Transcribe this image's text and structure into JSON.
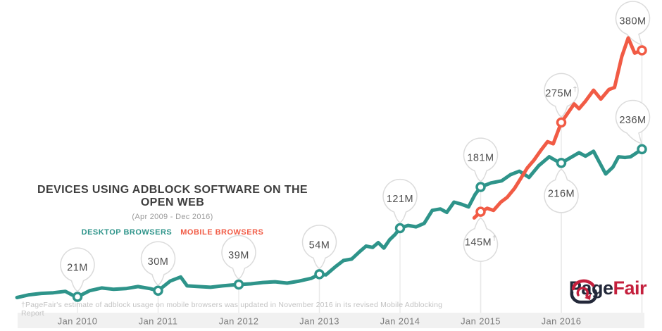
{
  "chart_data": {
    "type": "line",
    "title": "DEVICES USING ADBLOCK SOFTWARE ON THE OPEN WEB",
    "subtitle": "(Apr 2009 - Dec 2016)",
    "legend": [
      {
        "name": "DESKTOP BROWSERS",
        "color": "#2E948A"
      },
      {
        "name": "MOBILE BROWSERS",
        "color": "#F15B45"
      }
    ],
    "x_ticks": [
      {
        "label": "Jan 2010",
        "year": 2010
      },
      {
        "label": "Jan 2011",
        "year": 2011
      },
      {
        "label": "Jan 2012",
        "year": 2012
      },
      {
        "label": "Jan 2013",
        "year": 2013
      },
      {
        "label": "Jan 2014",
        "year": 2014
      },
      {
        "label": "Jan 2015",
        "year": 2015
      },
      {
        "label": "Jan 2016",
        "year": 2016
      }
    ],
    "x_range": [
      2009.25,
      2017.0
    ],
    "value_unit": "M",
    "series": [
      {
        "name": "Desktop Browsers",
        "color": "#2E948A",
        "points": [
          [
            2009.25,
            20
          ],
          [
            2009.4,
            24
          ],
          [
            2009.55,
            26
          ],
          [
            2009.7,
            27
          ],
          [
            2009.85,
            29
          ],
          [
            2009.93,
            24
          ],
          [
            2010,
            21
          ],
          [
            2010.15,
            30
          ],
          [
            2010.3,
            34
          ],
          [
            2010.45,
            32
          ],
          [
            2010.6,
            33
          ],
          [
            2010.75,
            36
          ],
          [
            2010.9,
            33
          ],
          [
            2011,
            30
          ],
          [
            2011.15,
            44
          ],
          [
            2011.28,
            50
          ],
          [
            2011.36,
            37
          ],
          [
            2011.5,
            36
          ],
          [
            2011.65,
            35
          ],
          [
            2011.8,
            37
          ],
          [
            2011.9,
            38
          ],
          [
            2012,
            39
          ],
          [
            2012.15,
            40
          ],
          [
            2012.3,
            42
          ],
          [
            2012.45,
            43
          ],
          [
            2012.6,
            41
          ],
          [
            2012.75,
            44
          ],
          [
            2012.9,
            48
          ],
          [
            2013,
            54
          ],
          [
            2013.08,
            53
          ],
          [
            2013.2,
            65
          ],
          [
            2013.3,
            74
          ],
          [
            2013.4,
            76
          ],
          [
            2013.5,
            87
          ],
          [
            2013.58,
            95
          ],
          [
            2013.66,
            93
          ],
          [
            2013.73,
            100
          ],
          [
            2013.8,
            92
          ],
          [
            2013.87,
            104
          ],
          [
            2013.94,
            112
          ],
          [
            2014,
            121
          ],
          [
            2014.1,
            125
          ],
          [
            2014.2,
            123
          ],
          [
            2014.3,
            128
          ],
          [
            2014.4,
            147
          ],
          [
            2014.5,
            149
          ],
          [
            2014.58,
            144
          ],
          [
            2014.67,
            159
          ],
          [
            2014.76,
            156
          ],
          [
            2014.85,
            152
          ],
          [
            2014.93,
            170
          ],
          [
            2015,
            181
          ],
          [
            2015.13,
            187
          ],
          [
            2015.26,
            190
          ],
          [
            2015.37,
            199
          ],
          [
            2015.48,
            204
          ],
          [
            2015.6,
            195
          ],
          [
            2015.72,
            212
          ],
          [
            2015.85,
            225
          ],
          [
            2015.94,
            219
          ],
          [
            2016,
            216
          ],
          [
            2016.22,
            231
          ],
          [
            2016.3,
            226
          ],
          [
            2016.4,
            233
          ],
          [
            2016.55,
            200
          ],
          [
            2016.64,
            210
          ],
          [
            2016.71,
            225
          ],
          [
            2016.79,
            224
          ],
          [
            2016.86,
            225
          ],
          [
            2017,
            236
          ]
        ]
      },
      {
        "name": "Mobile Browsers",
        "color": "#F15B45",
        "points": [
          [
            2014.92,
            136
          ],
          [
            2015,
            145
          ],
          [
            2015.08,
            150
          ],
          [
            2015.16,
            147
          ],
          [
            2015.25,
            159
          ],
          [
            2015.33,
            166
          ],
          [
            2015.42,
            179
          ],
          [
            2015.5,
            194
          ],
          [
            2015.58,
            209
          ],
          [
            2015.66,
            220
          ],
          [
            2015.75,
            235
          ],
          [
            2015.83,
            247
          ],
          [
            2015.9,
            244
          ],
          [
            2016,
            275
          ],
          [
            2016.16,
            302
          ],
          [
            2016.22,
            295
          ],
          [
            2016.3,
            306
          ],
          [
            2016.4,
            322
          ],
          [
            2016.49,
            309
          ],
          [
            2016.59,
            323
          ],
          [
            2016.66,
            326
          ],
          [
            2016.75,
            371
          ],
          [
            2016.83,
            398
          ],
          [
            2016.91,
            376
          ],
          [
            2017,
            380
          ]
        ]
      }
    ],
    "annotations": [
      {
        "label": "21M",
        "series": 0,
        "year": 2010,
        "value": 21,
        "placement": "above",
        "dagger": false,
        "dx": 0
      },
      {
        "label": "30M",
        "series": 0,
        "year": 2011,
        "value": 30,
        "placement": "above",
        "dagger": false,
        "dx": 0
      },
      {
        "label": "39M",
        "series": 0,
        "year": 2012,
        "value": 39,
        "placement": "above",
        "dagger": false,
        "dx": 0
      },
      {
        "label": "54M",
        "series": 0,
        "year": 2013,
        "value": 54,
        "placement": "above",
        "dagger": false,
        "dx": 0
      },
      {
        "label": "121M",
        "series": 0,
        "year": 2014,
        "value": 121,
        "placement": "above",
        "dagger": false,
        "dx": 0
      },
      {
        "label": "181M",
        "series": 0,
        "year": 2015,
        "value": 181,
        "placement": "above",
        "dagger": false,
        "dx": 0
      },
      {
        "label": "145M",
        "series": 1,
        "year": 2015,
        "value": 145,
        "placement": "below",
        "dagger": true,
        "dx": 0
      },
      {
        "label": "275M",
        "series": 1,
        "year": 2016,
        "value": 275,
        "placement": "above",
        "dagger": true,
        "dx": 0
      },
      {
        "label": "216M",
        "series": 0,
        "year": 2016,
        "value": 216,
        "placement": "below",
        "dagger": false,
        "dx": 0
      },
      {
        "label": "380M",
        "series": 1,
        "year": 2017,
        "value": 380,
        "placement": "above",
        "dagger": false,
        "dx": -13
      },
      {
        "label": "236M",
        "series": 0,
        "year": 2017,
        "value": 236,
        "placement": "above",
        "dagger": false,
        "dx": -13
      }
    ],
    "grid": "off",
    "legend_position": "above-left-center"
  },
  "footnote": "†PageFair's estimate of adblock usage on mobile browsers was updated in November 2016 in its revised Mobile Adblocking Report",
  "logo": {
    "primary": "Page",
    "secondary": "Fair",
    "primary_color": "#232839",
    "secondary_color": "#C4203D"
  },
  "style": {
    "band_color": "#F1F1F1",
    "tick_text_color": "#7C7C7C",
    "guide_color": "#E9E9E9",
    "balloon_stroke": "#DBDBDB",
    "balloon_fill": "#FFFFFF",
    "balloon_text": "#4E4E4E",
    "dagger_color": "#B5B5B5",
    "title_color": "#3E3E3E",
    "subtitle_color": "#9B9B9B",
    "footnote_color": "#C3C3C3"
  }
}
